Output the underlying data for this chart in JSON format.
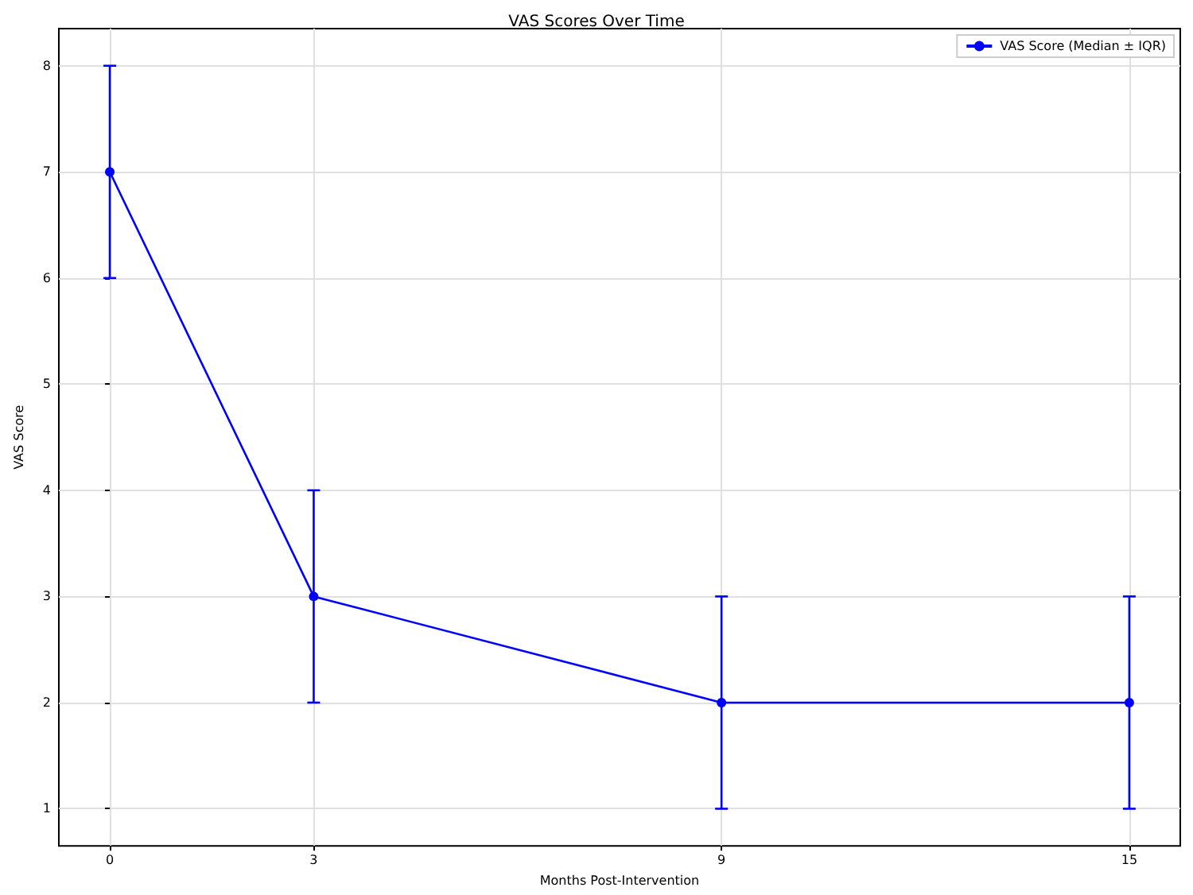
{
  "chart_data": {
    "type": "line",
    "title": "VAS Scores Over Time",
    "xlabel": "Months Post-Intervention",
    "ylabel": "VAS Score",
    "x": [
      0,
      3,
      9,
      15
    ],
    "series": [
      {
        "name": "VAS Score (Median ± IQR)",
        "color": "#0000ff",
        "values": [
          7,
          3,
          2,
          2
        ],
        "errors": [
          [
            6,
            8
          ],
          [
            2,
            4
          ],
          [
            1,
            3
          ],
          [
            1,
            3
          ]
        ]
      }
    ],
    "xlim": [
      -0.75,
      15.75
    ],
    "xticks": [
      0,
      3,
      9,
      15
    ],
    "ylim": [
      0.65,
      8.35
    ],
    "yticks": [
      1,
      2,
      3,
      4,
      5,
      6,
      7,
      8
    ],
    "grid": true,
    "legend": "top right",
    "marker": "circle",
    "line_style": "solid"
  }
}
